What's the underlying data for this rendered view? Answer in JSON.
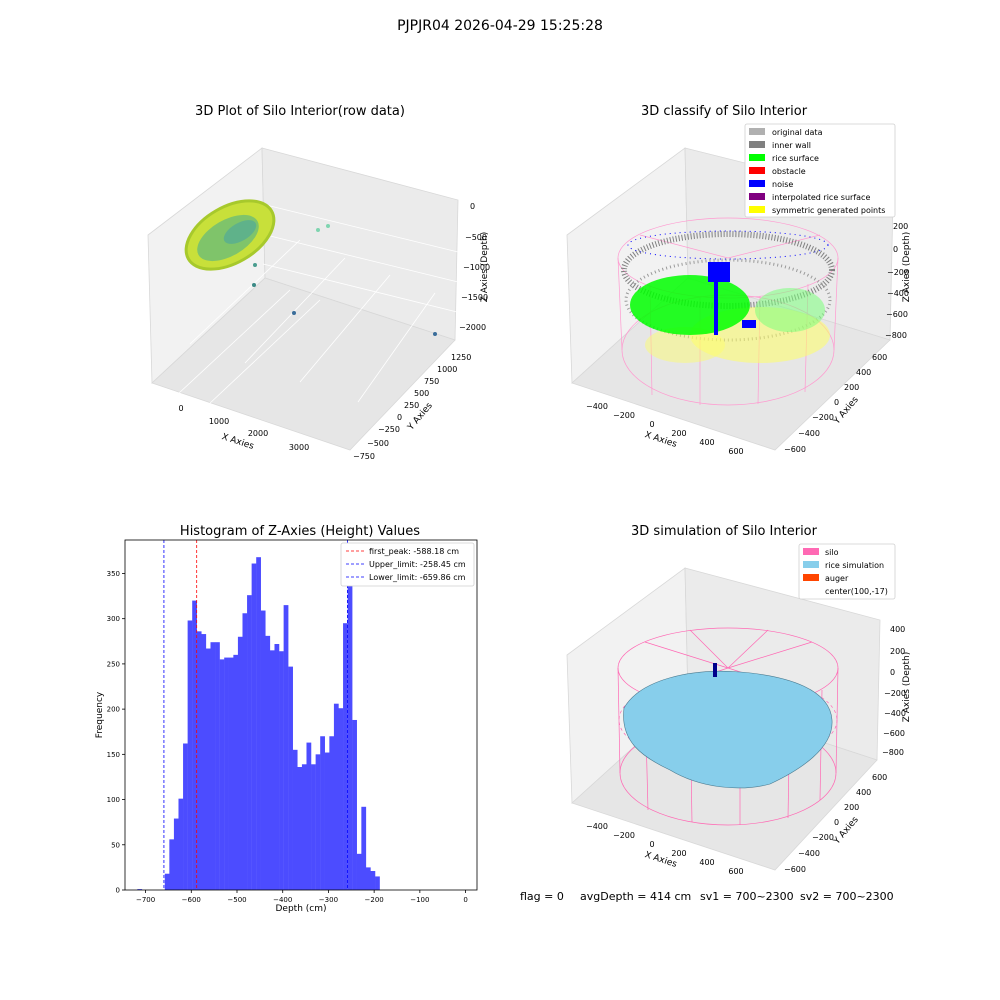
{
  "figure": {
    "suptitle": "PJPJR04 2026-04-29 15:25:28",
    "status": {
      "flag": "flag = 0",
      "avg_depth": "avgDepth = 414 cm",
      "sv1": "sv1 = 700~2300",
      "sv2": "sv2 = 700~2300"
    }
  },
  "panel1": {
    "title": "3D Plot of Silo Interior(row data)",
    "xlabel": "X Axies",
    "ylabel": "Y Axies",
    "zlabel": "Z Axies (Depth)",
    "xticks": [
      "0",
      "1000",
      "2000",
      "3000"
    ],
    "yticks": [
      "1250",
      "1000",
      "750",
      "500",
      "250",
      "0",
      "−250",
      "−500",
      "−750"
    ],
    "zticks": [
      "0",
      "−500",
      "−1000",
      "−1500",
      "−2000"
    ]
  },
  "panel2": {
    "title": "3D classify of Silo Interior",
    "xlabel": "X Axies",
    "ylabel": "Y Axies",
    "zlabel": "Z Axies (Depth)",
    "xticks": [
      "−400",
      "−200",
      "0",
      "200",
      "400",
      "600"
    ],
    "yticks": [
      "600",
      "400",
      "200",
      "0",
      "−200",
      "−400",
      "−600"
    ],
    "zticks": [
      "200",
      "0",
      "−200",
      "−400",
      "−600",
      "−800"
    ],
    "legend": [
      {
        "label": "original data",
        "color": "#b0b0b0"
      },
      {
        "label": "inner wall",
        "color": "#808080"
      },
      {
        "label": "rice surface",
        "color": "#00ff00"
      },
      {
        "label": "obstacle",
        "color": "#ff0000"
      },
      {
        "label": "noise",
        "color": "#0000ff"
      },
      {
        "label": "interpolated rice surface",
        "color": "#800080"
      },
      {
        "label": "symmetric generated points",
        "color": "#ffff00"
      }
    ]
  },
  "panel4": {
    "title": "3D simulation of Silo Interior",
    "xlabel": "X Axies",
    "ylabel": "Y Axies",
    "zlabel": "Z Axies (Depth)",
    "xticks": [
      "−400",
      "−200",
      "0",
      "200",
      "400",
      "600"
    ],
    "yticks": [
      "600",
      "400",
      "200",
      "0",
      "−200",
      "−400",
      "−600"
    ],
    "zticks": [
      "400",
      "200",
      "0",
      "−200",
      "−400",
      "−600",
      "−800"
    ],
    "legend": [
      {
        "label": "silo",
        "color": "#ff69b4"
      },
      {
        "label": "rice simulation",
        "color": "#87ceeb"
      },
      {
        "label": "auger",
        "color": "#ff4500"
      },
      {
        "label": "center(100,-17)",
        "color": ""
      }
    ]
  },
  "chart_data": {
    "type": "bar",
    "title": "Histogram of Z-Axies (Height) Values",
    "xlabel": "Depth (cm)",
    "ylabel": "Frequency",
    "xlim": [
      -745,
      25
    ],
    "ylim": [
      0,
      387
    ],
    "xticks": [
      -700,
      -600,
      -500,
      -400,
      -300,
      -200,
      -100,
      0
    ],
    "xtick_labels": [
      "−700",
      "−600",
      "−500",
      "−400",
      "−300",
      "−200",
      "−100",
      "0"
    ],
    "yticks": [
      0,
      50,
      100,
      150,
      200,
      250,
      300,
      350
    ],
    "ytick_labels": [
      "0",
      "50",
      "100",
      "150",
      "200",
      "250",
      "300",
      "350"
    ],
    "bar_color": "#4c4cff",
    "bin_width": 10,
    "bins": [
      {
        "x": -718,
        "y": 1
      },
      {
        "x": -708,
        "y": 0
      },
      {
        "x": -698,
        "y": 0
      },
      {
        "x": -688,
        "y": 0
      },
      {
        "x": -678,
        "y": 0
      },
      {
        "x": -668,
        "y": 0
      },
      {
        "x": -658,
        "y": 18
      },
      {
        "x": -648,
        "y": 56
      },
      {
        "x": -638,
        "y": 79
      },
      {
        "x": -628,
        "y": 101
      },
      {
        "x": -618,
        "y": 162
      },
      {
        "x": -608,
        "y": 298
      },
      {
        "x": -598,
        "y": 320
      },
      {
        "x": -588,
        "y": 286
      },
      {
        "x": -578,
        "y": 283
      },
      {
        "x": -568,
        "y": 267
      },
      {
        "x": -558,
        "y": 274
      },
      {
        "x": -548,
        "y": 274
      },
      {
        "x": -538,
        "y": 255
      },
      {
        "x": -528,
        "y": 257
      },
      {
        "x": -518,
        "y": 257
      },
      {
        "x": -508,
        "y": 260
      },
      {
        "x": -498,
        "y": 280
      },
      {
        "x": -488,
        "y": 306
      },
      {
        "x": -478,
        "y": 326
      },
      {
        "x": -468,
        "y": 361
      },
      {
        "x": -458,
        "y": 368
      },
      {
        "x": -448,
        "y": 309
      },
      {
        "x": -438,
        "y": 281
      },
      {
        "x": -428,
        "y": 265
      },
      {
        "x": -418,
        "y": 272
      },
      {
        "x": -408,
        "y": 264
      },
      {
        "x": -398,
        "y": 315
      },
      {
        "x": -388,
        "y": 247
      },
      {
        "x": -378,
        "y": 155
      },
      {
        "x": -368,
        "y": 136
      },
      {
        "x": -358,
        "y": 139
      },
      {
        "x": -348,
        "y": 163
      },
      {
        "x": -338,
        "y": 139
      },
      {
        "x": -328,
        "y": 150
      },
      {
        "x": -318,
        "y": 170
      },
      {
        "x": -308,
        "y": 152
      },
      {
        "x": -298,
        "y": 170
      },
      {
        "x": -288,
        "y": 206
      },
      {
        "x": -278,
        "y": 201
      },
      {
        "x": -268,
        "y": 295
      },
      {
        "x": -258,
        "y": 345
      },
      {
        "x": -248,
        "y": 188
      },
      {
        "x": -238,
        "y": 40
      },
      {
        "x": -228,
        "y": 92
      },
      {
        "x": -218,
        "y": 25
      },
      {
        "x": -208,
        "y": 21
      },
      {
        "x": -198,
        "y": 15
      }
    ],
    "vlines": [
      {
        "name": "first_peak: -588.18 cm",
        "x": -588.18,
        "color": "#ff0000"
      },
      {
        "name": "Upper_limit: -258.45 cm",
        "x": -258.45,
        "color": "#0000ff"
      },
      {
        "name": "Lower_limit: -659.86 cm",
        "x": -659.86,
        "color": "#0000ff"
      }
    ]
  }
}
